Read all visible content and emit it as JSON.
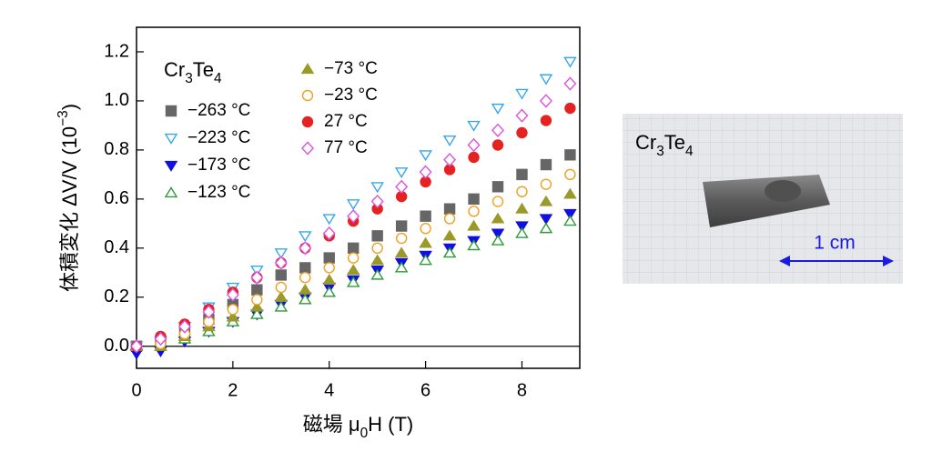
{
  "chart_data": {
    "type": "scatter",
    "x_label": {
      "text": "磁場 μ",
      "sub": "0",
      "rest": "H (T)"
    },
    "y_label": {
      "text": "体積変化 ΔV/V (10",
      "sup": "−3",
      "rest": ")"
    },
    "legend_title": [
      "Cr",
      "3",
      "Te",
      "4"
    ],
    "x": [
      0,
      0.5,
      1,
      1.5,
      2,
      2.5,
      3,
      3.5,
      4,
      4.5,
      5,
      5.5,
      6,
      6.5,
      7,
      7.5,
      8,
      8.5,
      9
    ],
    "xlim": [
      0,
      9.2
    ],
    "ylim": [
      -0.09,
      1.3
    ],
    "xticks": [
      0,
      2,
      4,
      6,
      8
    ],
    "yticks": [
      {
        "value": 0,
        "label": "0.0"
      },
      0.2,
      0.4,
      0.6,
      0.8,
      {
        "value": 1,
        "label": "1.0"
      },
      1.2
    ],
    "hline": 0,
    "series": [
      {
        "name": "−263 °C",
        "color": "#666666",
        "marker": "square",
        "filled": true,
        "values": [
          0,
          0.02,
          0.06,
          0.11,
          0.17,
          0.23,
          0.29,
          0.32,
          0.36,
          0.4,
          0.45,
          0.49,
          0.53,
          0.56,
          0.6,
          0.65,
          0.7,
          0.74,
          0.78
        ]
      },
      {
        "name": "−223 °C",
        "color": "#3aa6e8",
        "marker": "triangle-down",
        "filled": false,
        "values": [
          0,
          0.02,
          0.08,
          0.16,
          0.24,
          0.31,
          0.38,
          0.45,
          0.52,
          0.58,
          0.65,
          0.71,
          0.78,
          0.84,
          0.9,
          0.97,
          1.03,
          1.09,
          1.16
        ]
      },
      {
        "name": "−173 °C",
        "color": "#1010e0",
        "marker": "triangle-down",
        "filled": true,
        "values": [
          -0.03,
          -0.02,
          0.02,
          0.06,
          0.1,
          0.13,
          0.17,
          0.2,
          0.24,
          0.27,
          0.31,
          0.34,
          0.37,
          0.4,
          0.43,
          0.46,
          0.49,
          0.52,
          0.54
        ]
      },
      {
        "name": "−123 °C",
        "color": "#2f9a3a",
        "marker": "triangle-up",
        "filled": false,
        "values": [
          0,
          0,
          0.03,
          0.06,
          0.1,
          0.13,
          0.16,
          0.19,
          0.22,
          0.26,
          0.29,
          0.32,
          0.35,
          0.38,
          0.41,
          0.43,
          0.46,
          0.48,
          0.51
        ]
      },
      {
        "name": "−73 °C",
        "color": "#9a9a2a",
        "marker": "triangle-up",
        "filled": true,
        "values": [
          0,
          0,
          0.04,
          0.08,
          0.12,
          0.16,
          0.2,
          0.23,
          0.27,
          0.31,
          0.35,
          0.38,
          0.42,
          0.45,
          0.49,
          0.52,
          0.56,
          0.59,
          0.62
        ]
      },
      {
        "name": "−23 °C",
        "color": "#f0a020",
        "marker": "circle",
        "filled": false,
        "values": [
          0,
          0.01,
          0.05,
          0.1,
          0.15,
          0.19,
          0.24,
          0.28,
          0.32,
          0.36,
          0.4,
          0.44,
          0.48,
          0.52,
          0.55,
          0.59,
          0.63,
          0.66,
          0.7
        ]
      },
      {
        "name": "27 °C",
        "color": "#e52222",
        "marker": "circle",
        "filled": true,
        "values": [
          0,
          0.04,
          0.09,
          0.15,
          0.22,
          0.28,
          0.34,
          0.4,
          0.45,
          0.51,
          0.56,
          0.61,
          0.67,
          0.72,
          0.77,
          0.82,
          0.87,
          0.92,
          0.97
        ]
      },
      {
        "name": "77 °C",
        "color": "#e050e0",
        "marker": "diamond",
        "filled": false,
        "values": [
          0,
          0.03,
          0.08,
          0.14,
          0.21,
          0.28,
          0.34,
          0.4,
          0.46,
          0.53,
          0.59,
          0.65,
          0.71,
          0.76,
          0.82,
          0.88,
          0.94,
          1.0,
          1.07
        ]
      }
    ]
  },
  "photo": {
    "label": [
      "Cr",
      "3",
      "Te",
      "4"
    ],
    "scale": "1 cm"
  }
}
